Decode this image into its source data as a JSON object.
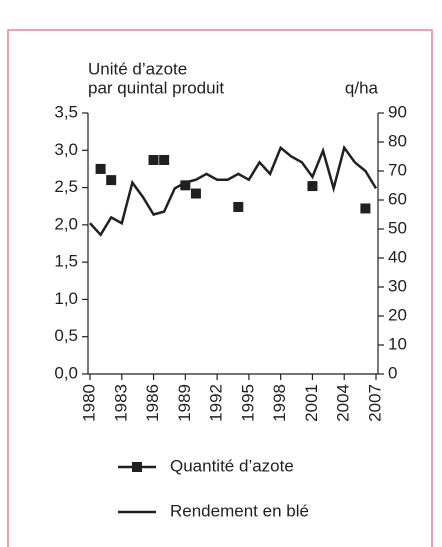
{
  "chart_data": {
    "type": "line",
    "ylabel": [
      "Unité d’azote",
      "par quintal produit"
    ],
    "y2label": "q/ha",
    "x": [
      1980,
      1981,
      1982,
      1983,
      1984,
      1985,
      1986,
      1987,
      1988,
      1989,
      1990,
      1991,
      1992,
      1993,
      1994,
      1995,
      1996,
      1997,
      1998,
      1999,
      2000,
      2001,
      2002,
      2003,
      2004,
      2005,
      2006,
      2007
    ],
    "series": [
      {
        "name": "Quantité d’azote",
        "color": "#231f20",
        "marker": "square",
        "line": false,
        "values": [
          null,
          2.75,
          2.6,
          null,
          null,
          null,
          2.87,
          2.87,
          null,
          2.53,
          2.42,
          null,
          null,
          null,
          2.24,
          null,
          null,
          null,
          null,
          null,
          null,
          2.52,
          null,
          null,
          null,
          null,
          2.22,
          null
        ]
      },
      {
        "name": "Rendement en blé",
        "color": "#231f20",
        "axis": "y2",
        "line": true,
        "values": [
          52,
          48,
          54,
          52,
          66,
          61,
          55,
          56,
          64,
          66,
          67,
          69,
          67,
          67,
          69,
          67,
          73,
          69,
          78,
          75,
          73,
          68,
          77,
          64,
          78,
          73,
          70,
          64
        ]
      }
    ],
    "xlim": [
      1980,
      2007
    ],
    "xticks": [
      1980,
      1983,
      1986,
      1989,
      1992,
      1995,
      1998,
      2001,
      2004,
      2007
    ],
    "ylim": [
      0,
      3.5
    ],
    "yticks": [
      {
        "value": 0,
        "label": "0,0"
      },
      {
        "value": 0.5,
        "label": "0,5"
      },
      {
        "value": 1,
        "label": "1,0"
      },
      {
        "value": 1.5,
        "label": "1,5"
      },
      {
        "value": 2,
        "label": "2,0"
      },
      {
        "value": 2.5,
        "label": "2,5"
      },
      {
        "value": 3,
        "label": "3,0"
      },
      {
        "value": 3.5,
        "label": "3,5"
      }
    ],
    "y2lim": [
      0,
      90
    ],
    "y2ticks": [
      0,
      10,
      20,
      30,
      40,
      50,
      60,
      70,
      80,
      90
    ],
    "frame_color": "#e8838f"
  }
}
